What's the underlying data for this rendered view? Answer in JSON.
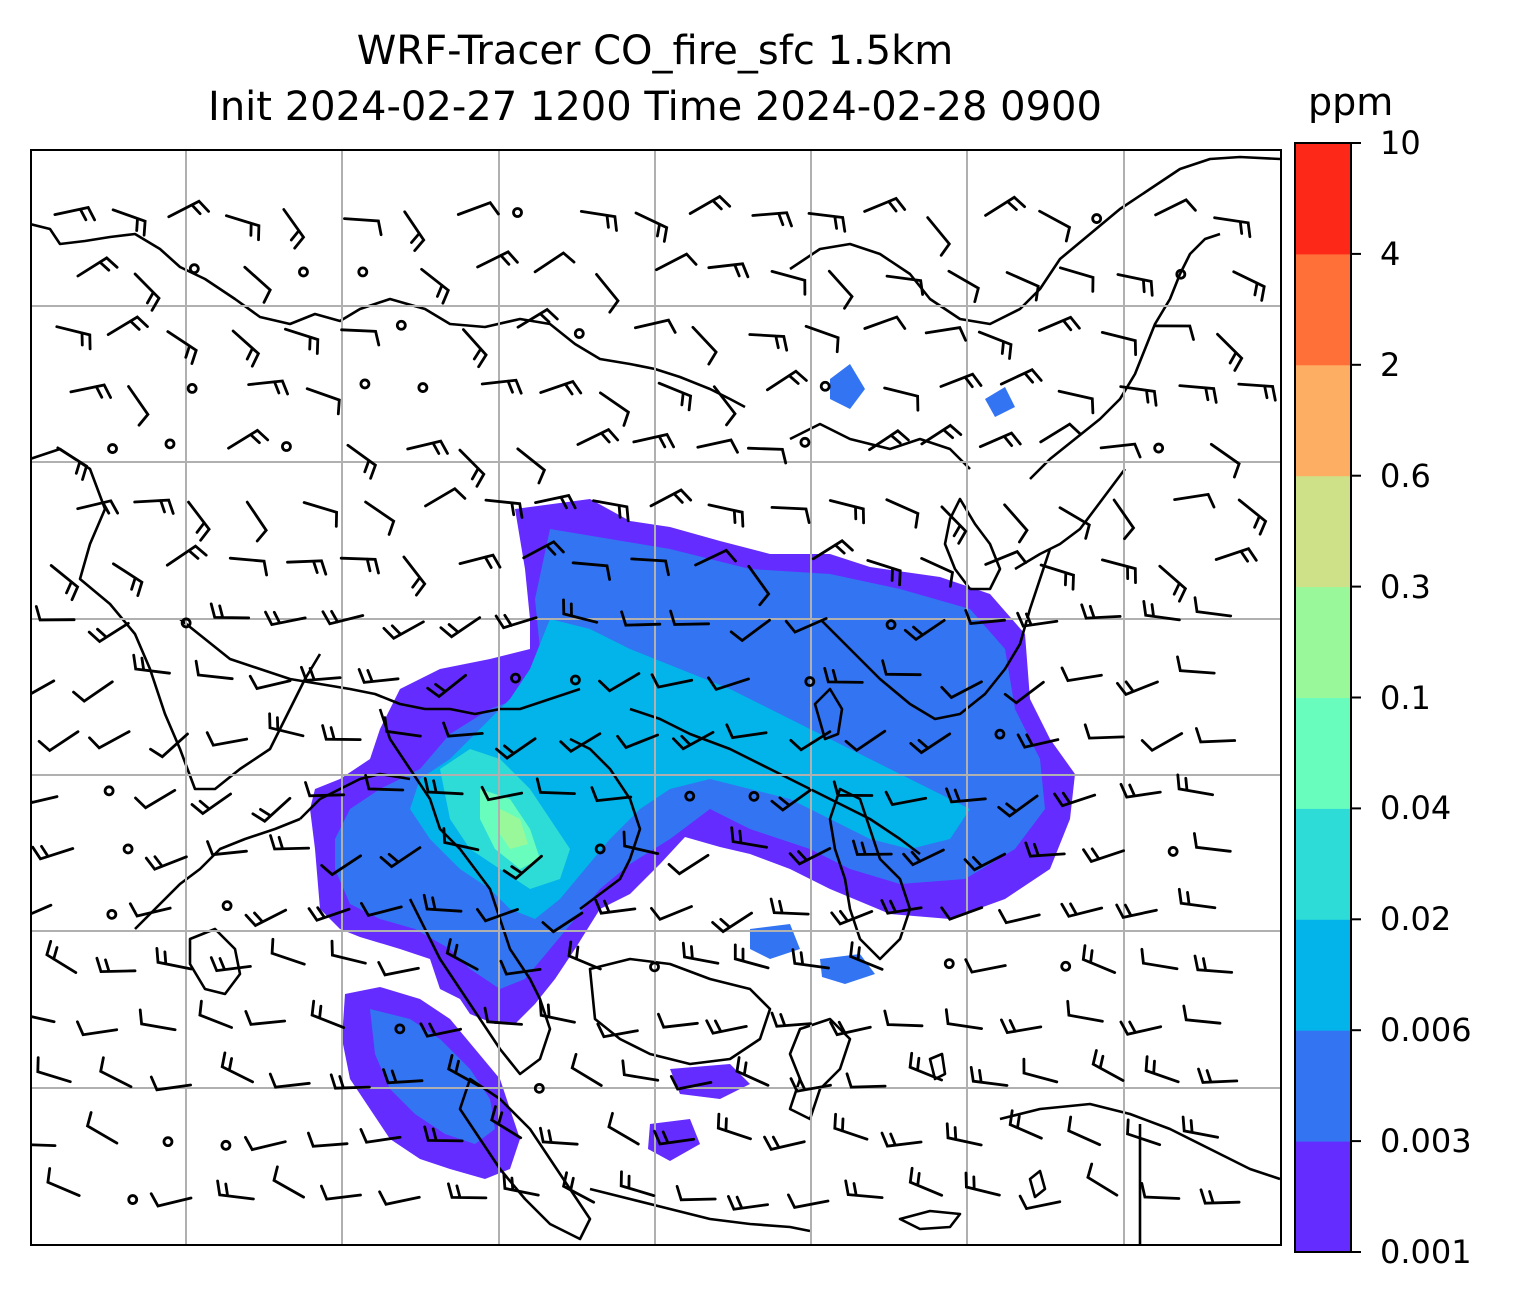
{
  "title": {
    "line1": "WRF-Tracer CO_fire_sfc 1.5km",
    "line2": "Init 2024-02-27 1200 Time 2024-02-28 0900"
  },
  "colorbar": {
    "units": "ppm",
    "ticks": [
      "0.001",
      "0.003",
      "0.006",
      "0.02",
      "0.04",
      "0.1",
      "0.3",
      "0.6",
      "2",
      "4",
      "10"
    ],
    "colors": [
      "#652cff",
      "#3374f3",
      "#02b4ea",
      "#2ddcd6",
      "#68fdbd",
      "#99f99a",
      "#cfe188",
      "#feae62",
      "#ff7039",
      "#fe2818"
    ]
  },
  "map": {
    "gridlines": true,
    "coastline_color": "#000000",
    "grid_color": "#b0b0b0",
    "wind_barbs": true
  }
}
